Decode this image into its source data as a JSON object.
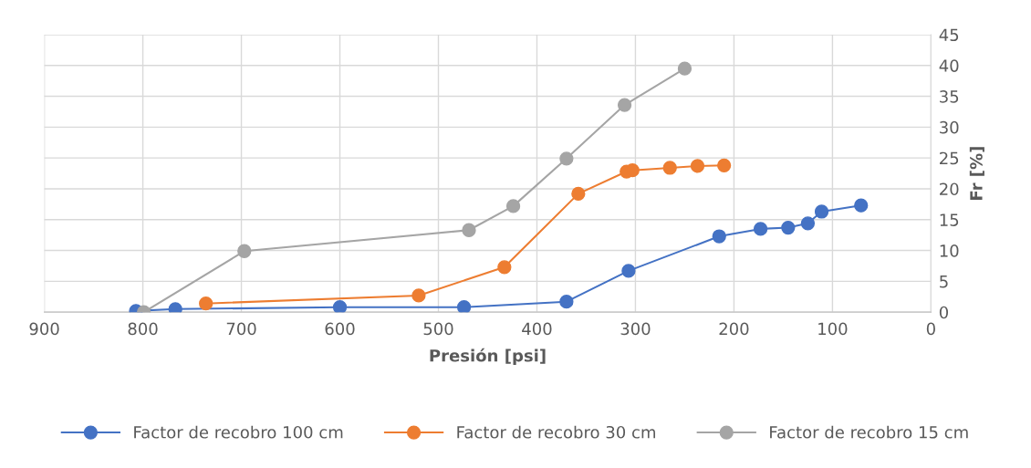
{
  "chart_data": {
    "type": "line",
    "xlabel": "Presión [psi]",
    "ylabel": "Fr [%]",
    "xlim": [
      900,
      0
    ],
    "xticks": [
      900,
      800,
      700,
      600,
      500,
      400,
      300,
      200,
      100,
      0
    ],
    "ylim": [
      0,
      45
    ],
    "yticks": [
      0,
      5,
      10,
      15,
      20,
      25,
      30,
      35,
      40,
      45
    ],
    "grid": true,
    "legend": "bottom",
    "marker": "circle",
    "line_style": "solid",
    "series": [
      {
        "name": "Factor de recobro 100 cm",
        "color": "#4472c4",
        "x": [
          807,
          767,
          600,
          474,
          370,
          307,
          215,
          173,
          145,
          125,
          111,
          71
        ],
        "values": [
          0.2,
          0.5,
          0.8,
          0.8,
          1.7,
          6.7,
          12.3,
          13.5,
          13.7,
          14.4,
          16.3,
          17.3
        ]
      },
      {
        "name": "Factor de recobro 30 cm",
        "color": "#ed7d31",
        "x": [
          736,
          520,
          433,
          358,
          309,
          303,
          265,
          237,
          210
        ],
        "values": [
          1.4,
          2.7,
          7.3,
          19.2,
          22.8,
          23.0,
          23.4,
          23.7,
          23.8
        ]
      },
      {
        "name": "Factor de recobro 15 cm",
        "color": "#a5a5a5",
        "x": [
          799,
          697,
          469,
          424,
          370,
          311,
          250
        ],
        "values": [
          0,
          9.9,
          13.3,
          17.2,
          24.9,
          33.6,
          39.5
        ]
      }
    ]
  }
}
